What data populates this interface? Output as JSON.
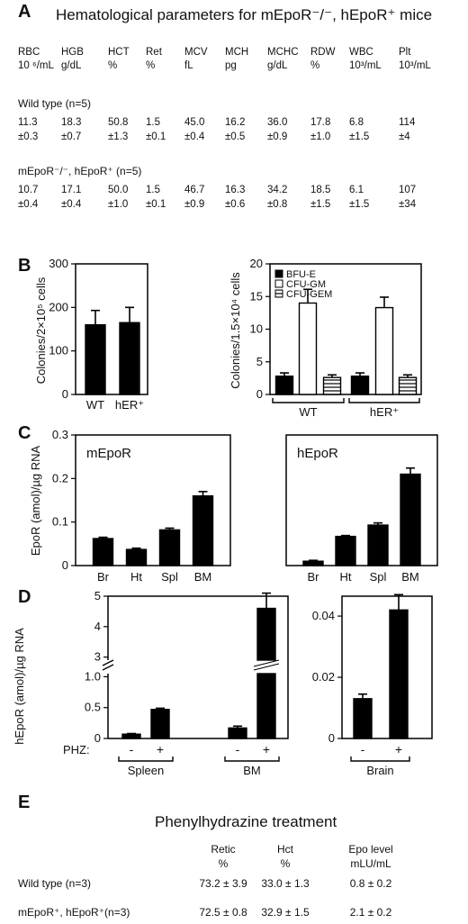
{
  "panels": {
    "a": {
      "letter": "A",
      "title": "Hematological parameters for mEpoR⁻/⁻, hEpoR⁺ mice",
      "headers": [
        {
          "name": "RBC",
          "unit": "10 ⁶/mL"
        },
        {
          "name": "HGB",
          "unit": "g/dL"
        },
        {
          "name": "HCT",
          "unit": "%"
        },
        {
          "name": "Ret",
          "unit": "%"
        },
        {
          "name": "MCV",
          "unit": "fL"
        },
        {
          "name": "MCH",
          "unit": "pg"
        },
        {
          "name": "MCHC",
          "unit": "g/dL"
        },
        {
          "name": "RDW",
          "unit": "%"
        },
        {
          "name": "WBC",
          "unit": "10³/mL"
        },
        {
          "name": "Plt",
          "unit": "10³/mL"
        }
      ],
      "groups": [
        {
          "label": "Wild type (n=5)",
          "means": [
            "11.3",
            "18.3",
            "50.8",
            "1.5",
            "45.0",
            "16.2",
            "36.0",
            "17.8",
            "6.8",
            "114"
          ],
          "sds": [
            "±0.3",
            "±0.7",
            "±1.3",
            "±0.1",
            "±0.4",
            "±0.5",
            "±0.9",
            "±1.0",
            "±1.5",
            "±4"
          ]
        },
        {
          "label": "mEpoR⁻/⁻, hEpoR⁺ (n=5)",
          "means": [
            "10.7",
            "17.1",
            "50.0",
            "1.5",
            "46.7",
            "16.3",
            "34.2",
            "18.5",
            "6.1",
            "107"
          ],
          "sds": [
            "±0.4",
            "±0.4",
            "±1.0",
            "±0.1",
            "±0.9",
            "±0.6",
            "±0.8",
            "±1.5",
            "±1.5",
            "±34"
          ]
        }
      ]
    },
    "b": {
      "letter": "B"
    },
    "c": {
      "letter": "C"
    },
    "d": {
      "letter": "D"
    },
    "e": {
      "letter": "E",
      "title": "Phenylhydrazine treatment",
      "headers": [
        {
          "name": "Retic",
          "unit": "%"
        },
        {
          "name": "Hct",
          "unit": "%"
        },
        {
          "name": "Epo level",
          "unit": "mLU/mL"
        }
      ],
      "rows": [
        {
          "label": "Wild type (n=3)",
          "values": [
            "73.2 ± 3.9",
            "33.0 ± 1.3",
            "0.8 ± 0.2"
          ]
        },
        {
          "label": "mEpoR⁺, hEpoR⁺(n=3)",
          "values": [
            "72.5 ± 0.8",
            "32.9 ± 1.5",
            "2.1 ± 0.2"
          ]
        }
      ]
    }
  },
  "chart_data": [
    {
      "id": "b-left",
      "type": "bar",
      "ylabel": "Colonies/2×10⁵ cells",
      "categories": [
        "WT",
        "hER⁺"
      ],
      "values": [
        160,
        165
      ],
      "errors": [
        33,
        35
      ],
      "ylim": [
        0,
        300
      ],
      "yticks": [
        "0",
        "100",
        "200",
        "300"
      ]
    },
    {
      "id": "b-right",
      "type": "bar",
      "ylabel": "Colonies/1.5×10⁴ cells",
      "groups": [
        "WT",
        "hER⁺"
      ],
      "series": [
        {
          "name": "BFU-E",
          "values": [
            2.8,
            2.8
          ],
          "errors": [
            0.5,
            0.5
          ]
        },
        {
          "name": "CFU-GM",
          "values": [
            14,
            13.3
          ],
          "errors": [
            2.1,
            1.6
          ]
        },
        {
          "name": "CFU-GEM",
          "values": [
            2.6,
            2.6
          ],
          "errors": [
            0.4,
            0.4
          ]
        }
      ],
      "ylim": [
        0,
        20
      ],
      "yticks": [
        "0",
        "5",
        "10",
        "15",
        "20"
      ],
      "legend_placement": "top-left"
    },
    {
      "id": "c-left",
      "type": "bar",
      "title": "mEpoR",
      "ylabel": "EpoR (amol)/µg RNA",
      "categories": [
        "Br",
        "Ht",
        "Spl",
        "BM"
      ],
      "values": [
        0.062,
        0.037,
        0.082,
        0.16
      ],
      "errors": [
        0.003,
        0.003,
        0.004,
        0.01
      ],
      "ylim": [
        0,
        0.3
      ],
      "yticks": [
        "0",
        "0.1",
        "0.2",
        "0.3"
      ]
    },
    {
      "id": "c-right",
      "type": "bar",
      "title": "hEpoR",
      "categories": [
        "Br",
        "Ht",
        "Spl",
        "BM"
      ],
      "values": [
        0.01,
        0.067,
        0.093,
        0.21
      ],
      "errors": [
        0.002,
        0.002,
        0.005,
        0.014
      ],
      "ylim": [
        0,
        0.3
      ]
    },
    {
      "id": "d-left",
      "type": "bar",
      "ylabel": "hEpoR (amol)/µg RNA",
      "factor_label": "PHZ:",
      "treatment": [
        "-",
        "+",
        "-",
        "+"
      ],
      "groups": [
        "Spleen",
        "BM"
      ],
      "values": [
        0.07,
        0.47,
        0.17,
        4.6
      ],
      "errors": [
        0.01,
        0.02,
        0.03,
        0.5
      ],
      "ylim": [
        0,
        5
      ],
      "axis_break": [
        1.05,
        2.9
      ],
      "yticks": [
        "0",
        "0.5",
        "1.0",
        "2",
        "3",
        "4",
        "5"
      ]
    },
    {
      "id": "d-right",
      "type": "bar",
      "treatment": [
        "-",
        "+"
      ],
      "groups": [
        "Brain"
      ],
      "values": [
        0.013,
        0.042
      ],
      "errors": [
        0.0015,
        0.005
      ],
      "ylim": [
        0,
        0.04
      ],
      "yticks": [
        "0",
        "0.02",
        "0.04"
      ]
    }
  ]
}
